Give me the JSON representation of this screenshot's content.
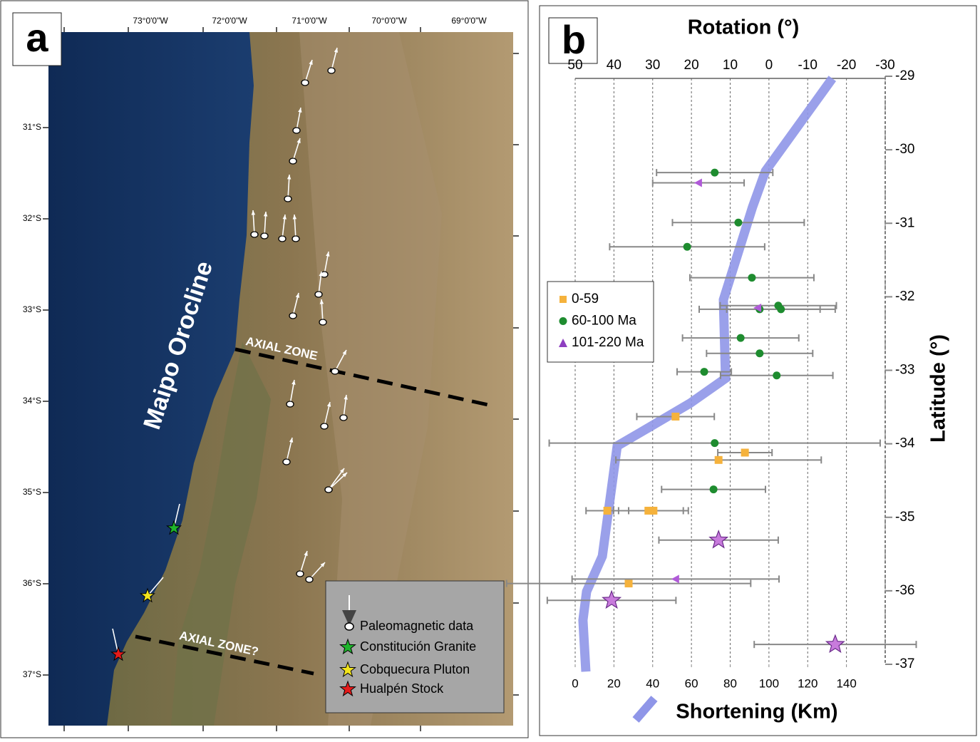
{
  "panel_a": {
    "label": "a",
    "title": "Maipo Orocline",
    "lon_labels": [
      "73°0'0\"W",
      "72°0'0\"W",
      "71°0'0\"W",
      "70°0'0\"W",
      "69°0'0\"W"
    ],
    "lat_labels": [
      "31°S",
      "32°S",
      "33°S",
      "34°S",
      "35°S",
      "36°S",
      "37°S"
    ],
    "zones": [
      "AXIAL ZONE",
      "AXIAL ZONE?"
    ],
    "legend": [
      "Paleomagnetic data",
      "Constitución Granite",
      "Cobquecura Pluton",
      "Hualpén Stock"
    ]
  },
  "chart_data": {
    "type": "scatter",
    "label": "b",
    "x_label": "Rotation (°)",
    "x2_label": "Shortening (Km)",
    "y_label": "Latitude (°)",
    "xlim": [
      50,
      -30
    ],
    "xticks": [
      50,
      40,
      30,
      20,
      10,
      0,
      -10,
      -20,
      -30
    ],
    "x2lim": [
      0,
      160
    ],
    "x2ticks": [
      0,
      20,
      40,
      60,
      80,
      100,
      120,
      140
    ],
    "ylim": [
      -29,
      -37
    ],
    "yticks": [
      -29,
      -30,
      -31,
      -32,
      -33,
      -34,
      -35,
      -36,
      -37
    ],
    "grid": true,
    "legend": "upper left",
    "series": [
      {
        "name": "0-59",
        "color": "#f5b23c",
        "marker": "square",
        "x": [
          24.1,
          6.2,
          13.0,
          41.7,
          31.1,
          29.8,
          36.2
        ],
        "values": [
          -33.63,
          -34.12,
          -34.22,
          -34.91,
          -34.91,
          -34.91,
          -35.9
        ],
        "errors": [
          10,
          7,
          26.5,
          5.5,
          9,
          9,
          31.5
        ]
      },
      {
        "name": "60-100 Ma",
        "color": "#1e8c2f",
        "marker": "circle",
        "x": [
          14.0,
          7.9,
          21.1,
          4.4,
          2.4,
          -2.4,
          -3.1,
          7.3,
          2.4,
          16.7,
          -2.0,
          14.0,
          14.3
        ],
        "values": [
          -30.31,
          -30.99,
          -31.32,
          -31.74,
          -32.17,
          -32.12,
          -32.17,
          -32.56,
          -32.77,
          -33.02,
          -33.07,
          -33.99,
          -34.62
        ],
        "errors": [
          15,
          17,
          20,
          16,
          15.6,
          15,
          14,
          15,
          13.7,
          7,
          14.5,
          42.7,
          13.4
        ]
      },
      {
        "name": "101-220 Ma",
        "color": "#8e3fc0",
        "marker": "triangle",
        "markers": [
          "triangle",
          "triangle",
          "triangle",
          "star",
          "star",
          "star"
        ],
        "x": [
          18.2,
          2.9,
          24.1,
          13.0,
          40.6,
          -17.1
        ],
        "values": [
          -30.45,
          -32.15,
          -35.84,
          -35.31,
          -36.13,
          -36.73
        ],
        "errors": [
          11.8,
          0,
          26.7,
          15.4,
          16.6,
          20.9
        ]
      },
      {
        "type": "line",
        "axis": "x2",
        "color": "#8f96e8",
        "x": [
          132.7,
          98.2,
          91.5,
          76.5,
          77.6,
          59.2,
          38.6,
          21.7,
          14.0,
          5.9,
          4.0,
          5.5
        ],
        "values": [
          -29.03,
          -30.29,
          -30.78,
          -32.04,
          -33.11,
          -33.45,
          -33.77,
          -34.03,
          -35.53,
          -36.01,
          -36.4,
          -37.1
        ]
      }
    ]
  }
}
